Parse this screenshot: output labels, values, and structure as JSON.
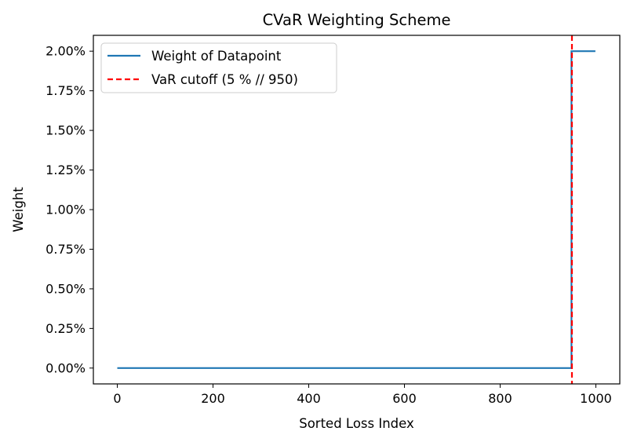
{
  "chart_data": {
    "type": "line",
    "title": "CVaR Weighting Scheme",
    "xlabel": "Sorted Loss Index",
    "ylabel": "Weight",
    "xlim": [
      -50,
      1050
    ],
    "ylim": [
      -0.001,
      0.021
    ],
    "x_ticks": [
      0,
      200,
      400,
      600,
      800,
      1000
    ],
    "x_tick_labels": [
      "0",
      "200",
      "400",
      "600",
      "800",
      "1000"
    ],
    "y_ticks": [
      0,
      0.0025,
      0.005,
      0.0075,
      0.01,
      0.0125,
      0.015,
      0.0175,
      0.02
    ],
    "y_tick_labels": [
      "0.00%",
      "0.25%",
      "0.50%",
      "0.75%",
      "1.00%",
      "1.25%",
      "1.50%",
      "1.75%",
      "2.00%"
    ],
    "grid": false,
    "legend_position": "top-left",
    "series": [
      {
        "name": "Weight of Datapoint",
        "color": "#1f77b4",
        "style": "solid",
        "x": [
          0,
          949,
          949,
          999
        ],
        "y": [
          0,
          0,
          0.02,
          0.02
        ]
      }
    ],
    "reference_lines": [
      {
        "name": "VaR cutoff (5 % // 950)",
        "orientation": "vertical",
        "x": 950,
        "color": "#ff0000",
        "style": "dashed"
      }
    ]
  }
}
